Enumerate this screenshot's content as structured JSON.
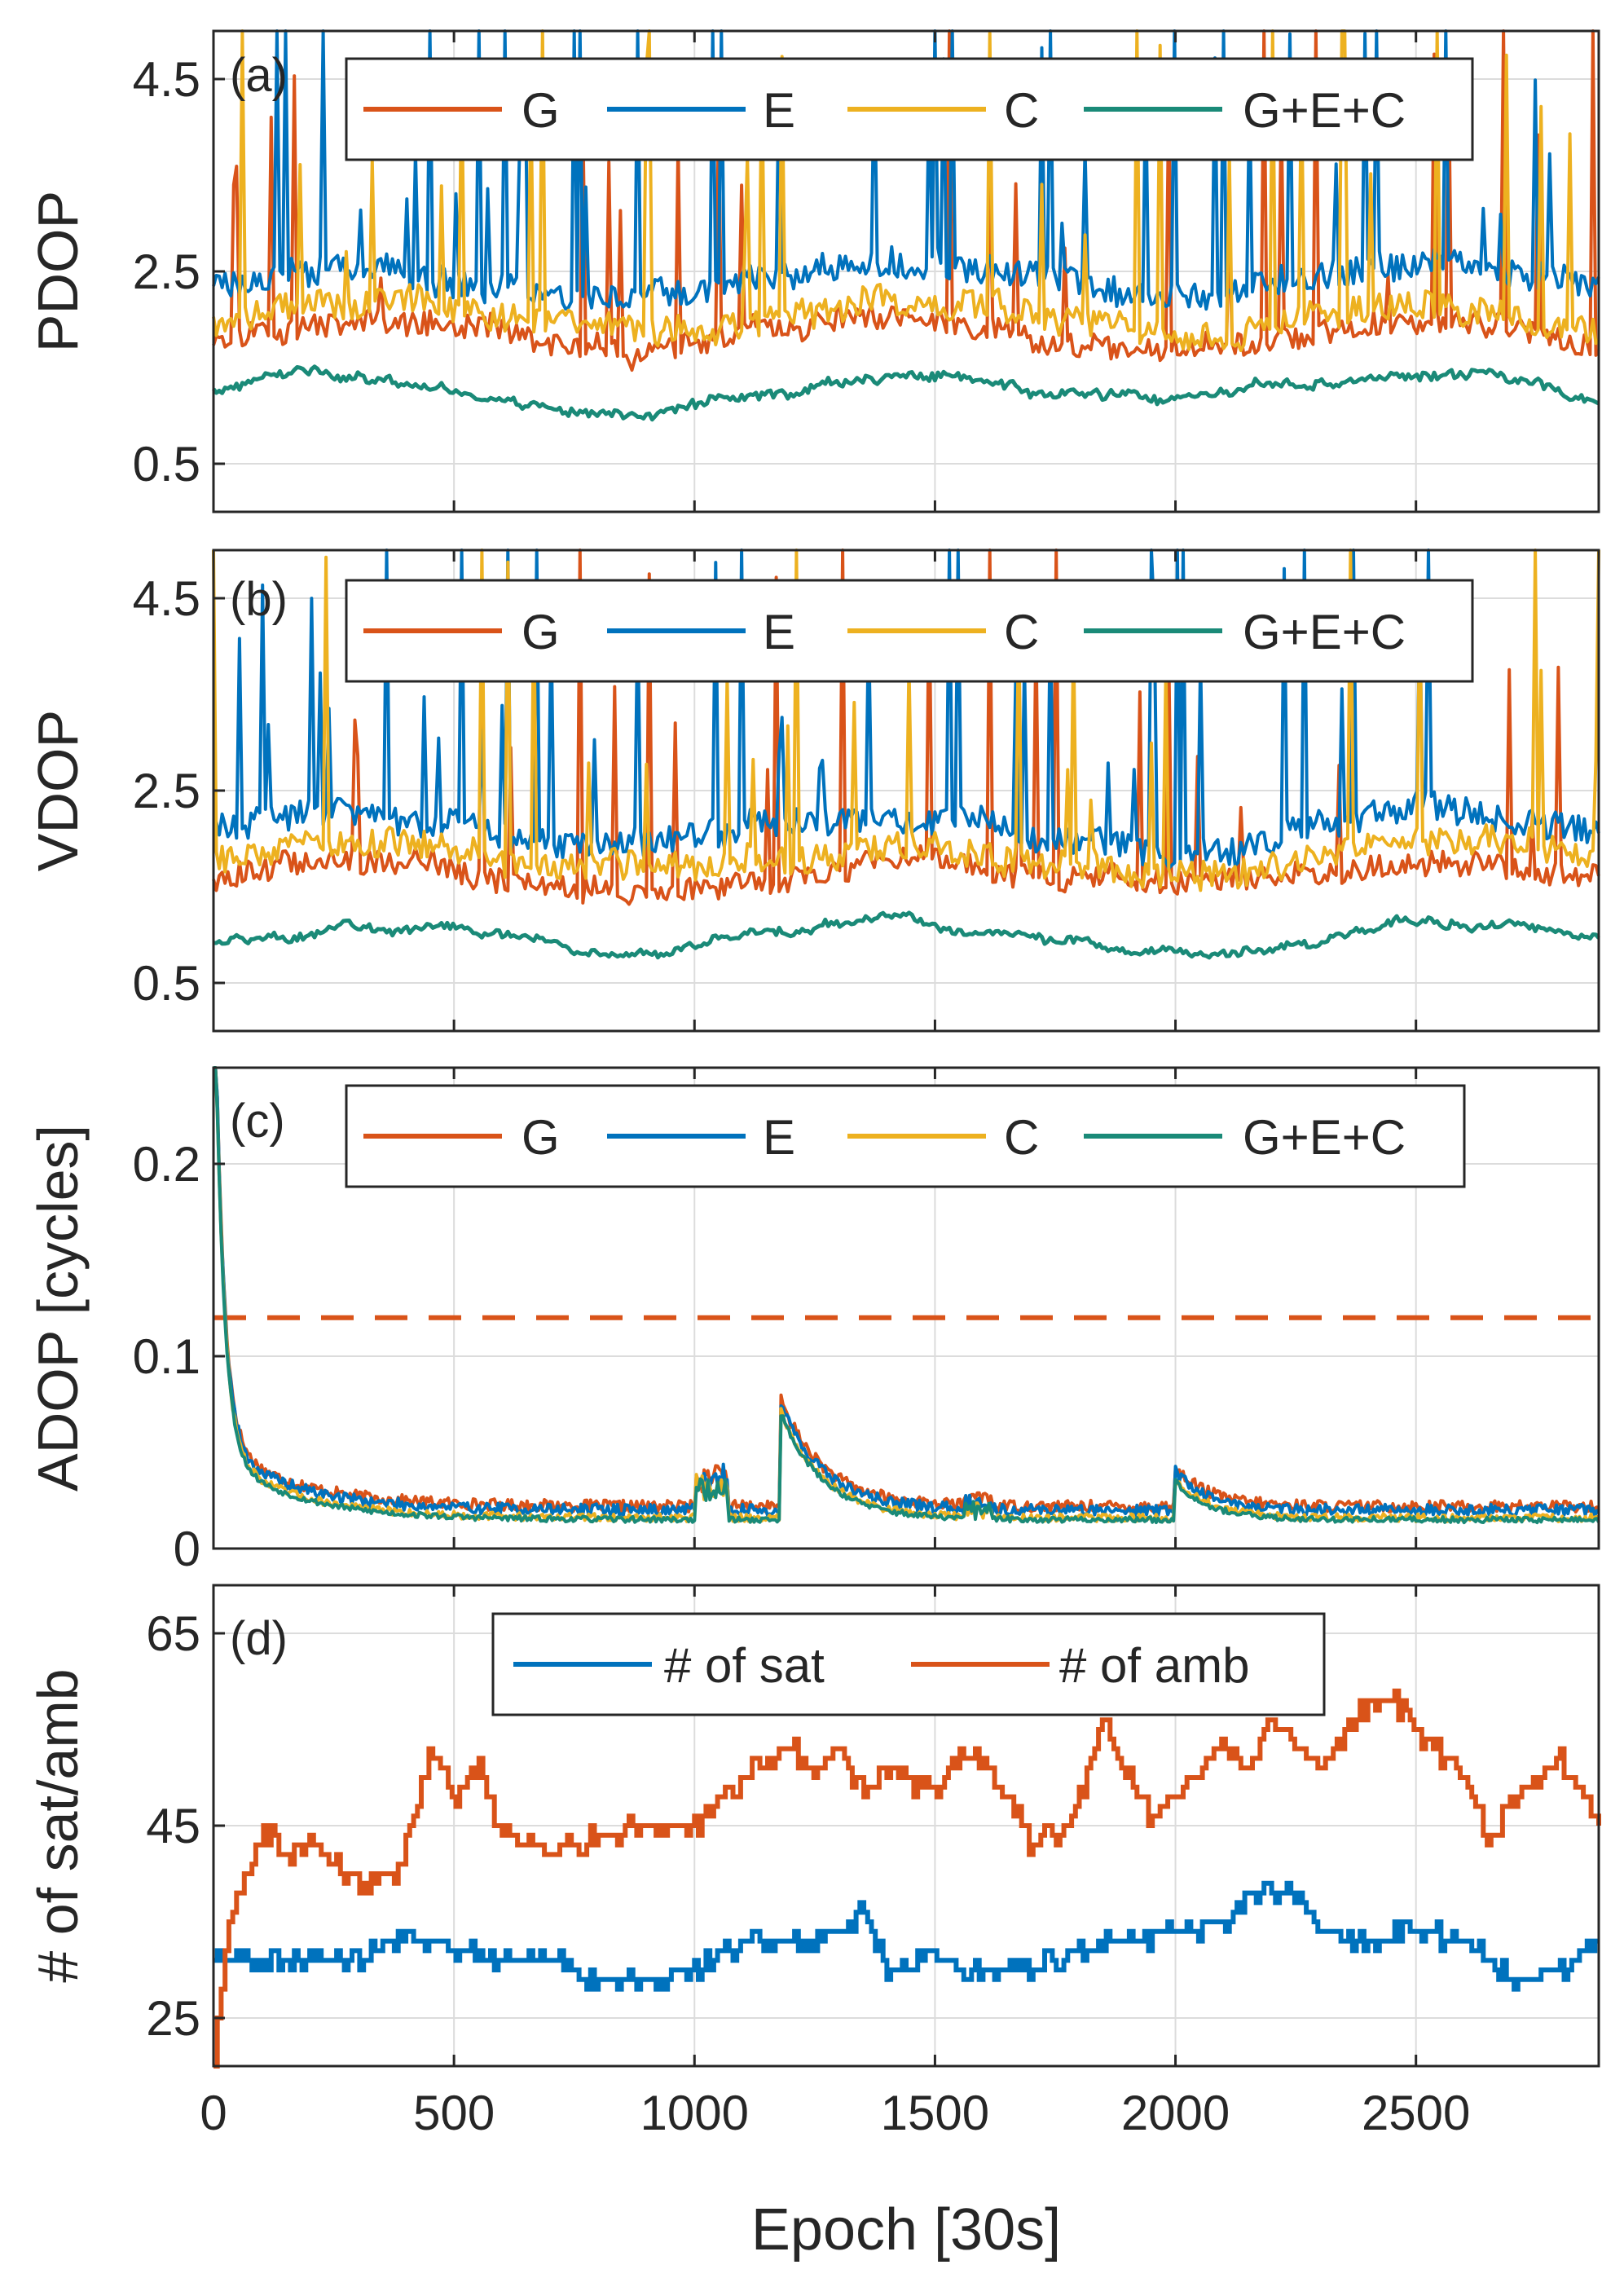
{
  "figure": {
    "xlabel": "Epoch [30s]",
    "xlim": [
      0,
      2880
    ],
    "xticks": [
      0,
      500,
      1000,
      1500,
      2000,
      2500
    ],
    "xtick_labels": [
      "0",
      "500",
      "1000",
      "1500",
      "2000",
      "2500"
    ]
  },
  "colors": {
    "G": "#D95319",
    "E": "#0072BD",
    "C": "#EDB120",
    "GEC": "#1A8A78",
    "grid": "#DCDCDC",
    "axis": "#262626"
  },
  "chart_data": [
    {
      "type": "line",
      "panel_label": "(a)",
      "ylabel": "PDOP",
      "ylim": [
        0,
        5.0
      ],
      "yticks": [
        0.5,
        2.5,
        4.5
      ],
      "ytick_labels": [
        "0.5",
        "2.5",
        "4.5"
      ],
      "legend": [
        "G",
        "E",
        "C",
        "G+E+C"
      ],
      "legend_position": "top",
      "series": [
        {
          "name": "G",
          "color_key": "G",
          "baseline": 1.8,
          "noise": 0.25,
          "spike_rate": 0.06,
          "spike_max": 3.3,
          "seed": 11
        },
        {
          "name": "E",
          "color_key": "E",
          "baseline": 2.4,
          "noise": 0.3,
          "spike_rate": 0.09,
          "spike_max": 3.6,
          "seed": 23
        },
        {
          "name": "C",
          "color_key": "C",
          "baseline": 2.0,
          "noise": 0.3,
          "spike_rate": 0.07,
          "spike_max": 3.3,
          "seed": 37
        },
        {
          "name": "G+E+C",
          "color_key": "GEC",
          "baseline": 1.25,
          "noise": 0.08,
          "spike_rate": 0.0,
          "spike_max": 0,
          "seed": 41
        }
      ]
    },
    {
      "type": "line",
      "panel_label": "(b)",
      "ylabel": "VDOP",
      "ylim": [
        0,
        5.0
      ],
      "yticks": [
        0.5,
        2.5,
        4.5
      ],
      "ytick_labels": [
        "0.5",
        "2.5",
        "4.5"
      ],
      "legend": [
        "G",
        "E",
        "C",
        "G+E+C"
      ],
      "legend_position": "top",
      "series": [
        {
          "name": "G",
          "color_key": "G",
          "baseline": 1.6,
          "noise": 0.25,
          "spike_rate": 0.06,
          "spike_max": 3.3,
          "seed": 13
        },
        {
          "name": "E",
          "color_key": "E",
          "baseline": 2.1,
          "noise": 0.3,
          "spike_rate": 0.09,
          "spike_max": 3.6,
          "seed": 29
        },
        {
          "name": "C",
          "color_key": "C",
          "baseline": 1.8,
          "noise": 0.3,
          "spike_rate": 0.07,
          "spike_max": 3.3,
          "seed": 31
        },
        {
          "name": "G+E+C",
          "color_key": "GEC",
          "baseline": 0.95,
          "noise": 0.07,
          "spike_rate": 0.0,
          "spike_max": 0,
          "seed": 43
        }
      ]
    },
    {
      "type": "line",
      "panel_label": "(c)",
      "ylabel": "ADOP [cycles]",
      "ylim": [
        0,
        0.25
      ],
      "yticks": [
        0,
        0.1,
        0.2
      ],
      "ytick_labels": [
        "0",
        "0.1",
        "0.2"
      ],
      "legend": [
        "G",
        "E",
        "C",
        "G+E+C"
      ],
      "legend_position": "top",
      "threshold": 0.12,
      "series": [
        {
          "name": "G",
          "color_key": "G",
          "floor": 0.022,
          "noise": 0.006,
          "seed": 17
        },
        {
          "name": "E",
          "color_key": "E",
          "floor": 0.02,
          "noise": 0.006,
          "seed": 19
        },
        {
          "name": "C",
          "color_key": "C",
          "floor": 0.016,
          "noise": 0.004,
          "seed": 47
        },
        {
          "name": "G+E+C",
          "color_key": "GEC",
          "floor": 0.015,
          "noise": 0.003,
          "seed": 53
        }
      ]
    },
    {
      "type": "line",
      "panel_label": "(d)",
      "ylabel": "# of sat/amb",
      "ylim": [
        20,
        70
      ],
      "yticks": [
        25,
        45,
        65
      ],
      "ytick_labels": [
        "25",
        "45",
        "65"
      ],
      "legend": [
        "# of sat",
        "# of amb"
      ],
      "legend_position": "top",
      "series": [
        {
          "name": "# of sat",
          "color_key": "E",
          "x": [
            0,
            100,
            300,
            400,
            500,
            600,
            700,
            800,
            900,
            1000,
            1100,
            1200,
            1300,
            1350,
            1400,
            1500,
            1600,
            1700,
            1800,
            1900,
            2000,
            2100,
            2150,
            2250,
            2300,
            2400,
            2500,
            2600,
            2700,
            2800,
            2880
          ],
          "y": [
            31,
            31,
            31,
            34,
            32,
            31,
            31,
            29,
            29,
            30,
            33,
            33,
            34,
            36,
            30,
            31,
            30,
            30,
            32,
            33,
            34,
            35,
            38,
            38,
            34,
            33,
            34,
            33,
            29,
            30,
            33
          ]
        },
        {
          "name": "# of amb",
          "color_key": "G",
          "x": [
            0,
            30,
            60,
            100,
            150,
            200,
            300,
            380,
            450,
            500,
            550,
            600,
            700,
            800,
            900,
            1000,
            1100,
            1150,
            1200,
            1250,
            1300,
            1350,
            1400,
            1500,
            1550,
            1600,
            1700,
            1780,
            1850,
            1900,
            1950,
            2000,
            2100,
            2150,
            2200,
            2300,
            2400,
            2450,
            2500,
            2600,
            2650,
            2700,
            2800,
            2880
          ],
          "y": [
            20,
            35,
            38,
            45,
            42,
            43,
            39,
            40,
            53,
            48,
            51,
            44,
            42,
            44,
            45,
            45,
            50,
            52,
            53,
            51,
            53,
            48,
            51,
            48,
            53,
            52,
            43,
            45,
            56,
            50,
            46,
            48,
            54,
            51,
            56,
            51,
            58,
            58,
            55,
            50,
            43,
            48,
            52,
            45
          ]
        }
      ]
    }
  ]
}
